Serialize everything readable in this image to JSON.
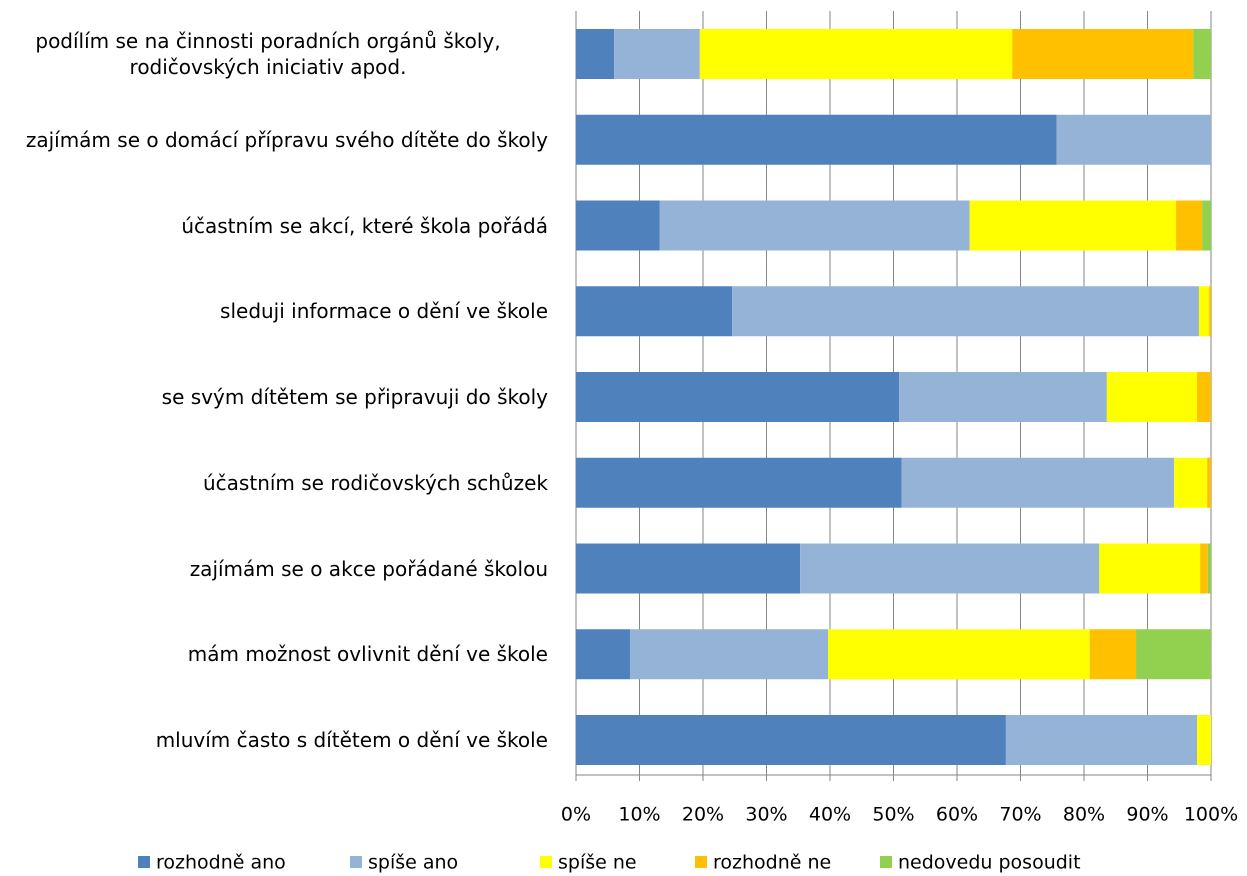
{
  "chart_data": {
    "type": "stacked-barh",
    "categories": [
      "podílím se na činnosti poradních orgánů školy, rodičovských iniciativ apod.",
      "zajímám se o domácí přípravu svého dítěte do školy",
      "účastním se akcí, které škola pořádá",
      "sleduji informace o dění ve škole",
      "se svým dítětem se připravuji do školy",
      "účastním se rodičovských schůzek",
      "zajímám se o akce pořádané školou",
      "mám možnost ovlivnit dění ve škole",
      "mluvím často s dítětem o dění ve škole"
    ],
    "series": [
      {
        "name": "rozhodně ano",
        "color": "#4f81bd",
        "values": [
          6,
          75.7,
          13.2,
          24.6,
          50.9,
          51.3,
          35.3,
          8.5,
          67.7
        ]
      },
      {
        "name": "spíše ano",
        "color": "#95b3d7",
        "values": [
          13.5,
          24.3,
          48.8,
          73.5,
          32.7,
          42.9,
          47.1,
          31.2,
          30.1
        ]
      },
      {
        "name": "spíše ne",
        "color": "#ffff00",
        "values": [
          49.2,
          0,
          32.5,
          1.6,
          14.2,
          5.2,
          15.9,
          41.2,
          2.2
        ]
      },
      {
        "name": "rozhodně ne",
        "color": "#ffc000",
        "values": [
          28.5,
          0,
          4.1,
          0.3,
          2.2,
          0.6,
          1.2,
          7.3,
          0
        ]
      },
      {
        "name": "nedovedu posoudit",
        "color": "#92d050",
        "values": [
          2.8,
          0,
          1.4,
          0,
          0,
          0,
          0.5,
          11.8,
          0
        ]
      }
    ],
    "xlim": [
      0,
      100
    ],
    "xticks": [
      {
        "value": 0,
        "label": "0%"
      },
      {
        "value": 10,
        "label": "10%"
      },
      {
        "value": 20,
        "label": "20%"
      },
      {
        "value": 30,
        "label": "30%"
      },
      {
        "value": 40,
        "label": "40%"
      },
      {
        "value": 50,
        "label": "50%"
      },
      {
        "value": 60,
        "label": "60%"
      },
      {
        "value": 70,
        "label": "70%"
      },
      {
        "value": 80,
        "label": "80%"
      },
      {
        "value": 90,
        "label": "90%"
      },
      {
        "value": 100,
        "label": "100%"
      }
    ],
    "grid": true,
    "legend": "bottom"
  }
}
